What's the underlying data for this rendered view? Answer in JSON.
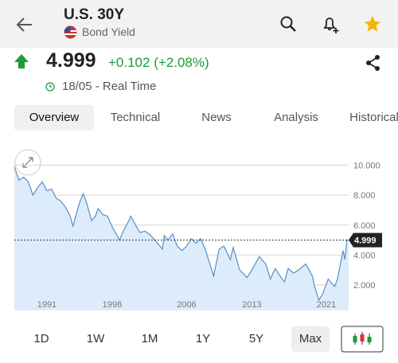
{
  "header": {
    "title": "U.S. 30Y",
    "subtitle": "Bond Yield"
  },
  "quote": {
    "price": "4.999",
    "change": "+0.102 (+2.08%)",
    "time": "18/05 - Real Time"
  },
  "tabs": [
    "Overview",
    "Technical",
    "News",
    "Analysis",
    "Historical"
  ],
  "chart_data": {
    "type": "area",
    "x": [
      1987.5,
      1988,
      1988.5,
      1989,
      1989.5,
      1990,
      1990.5,
      1991,
      1991.5,
      1992,
      1992.5,
      1993,
      1993.5,
      1993.8,
      1994,
      1994.5,
      1994.9,
      1995.3,
      1995.8,
      1996.2,
      1996.5,
      1997,
      1997.5,
      1998,
      1998.8,
      1999.2,
      1999.8,
      2000,
      2000.7,
      2001,
      2001.5,
      2002,
      2002.6,
      2003.4,
      2003.6,
      2004,
      2004.5,
      2005,
      2005.5,
      2006,
      2006.5,
      2007,
      2007.5,
      2008,
      2008.9,
      2009.5,
      2010,
      2010.7,
      2011,
      2011.7,
      2012.5,
      2013,
      2013.8,
      2014.5,
      2015,
      2015.5,
      2016.5,
      2016.9,
      2017.5,
      2018,
      2018.8,
      2019.5,
      2019.7,
      2020.2,
      2020.6,
      2021.2,
      2021.9,
      2022.2,
      2022.8,
      2023.0,
      2023.2,
      2023.4
    ],
    "values": [
      9.9,
      9.0,
      9.2,
      8.9,
      8.0,
      8.5,
      8.9,
      8.3,
      8.4,
      7.8,
      7.6,
      7.2,
      6.6,
      5.9,
      6.4,
      7.5,
      8.1,
      7.4,
      6.3,
      6.6,
      7.1,
      6.7,
      6.6,
      5.9,
      5.0,
      5.6,
      6.3,
      6.6,
      5.8,
      5.5,
      5.6,
      5.4,
      5.0,
      4.4,
      5.3,
      5.0,
      5.4,
      4.6,
      4.3,
      4.6,
      5.1,
      4.8,
      5.1,
      4.4,
      2.6,
      4.4,
      4.6,
      3.7,
      4.5,
      3.0,
      2.5,
      3.0,
      3.9,
      3.4,
      2.4,
      3.1,
      2.2,
      3.1,
      2.8,
      3.0,
      3.4,
      2.6,
      2.0,
      1.0,
      1.4,
      2.4,
      1.9,
      2.4,
      4.3,
      3.7,
      5.0,
      4.999
    ],
    "color": "#5b8fc4",
    "fill": "#dcecfa",
    "xlim": [
      1987.5,
      2023.4
    ],
    "ylim": [
      0.3,
      11.2
    ],
    "xticks": [
      1991,
      1998,
      2006,
      2013,
      2021
    ],
    "yticks": [
      {
        "value": 10,
        "label": "10.000"
      },
      {
        "value": 8,
        "label": "8.000"
      },
      {
        "value": 6,
        "label": "6.000"
      },
      {
        "value": 4,
        "label": "4.000"
      },
      {
        "value": 2,
        "label": "2.000"
      }
    ],
    "grid": true,
    "last_value": 4.999
  },
  "ranges": [
    "1D",
    "1W",
    "1M",
    "1Y",
    "5Y",
    "Max"
  ]
}
